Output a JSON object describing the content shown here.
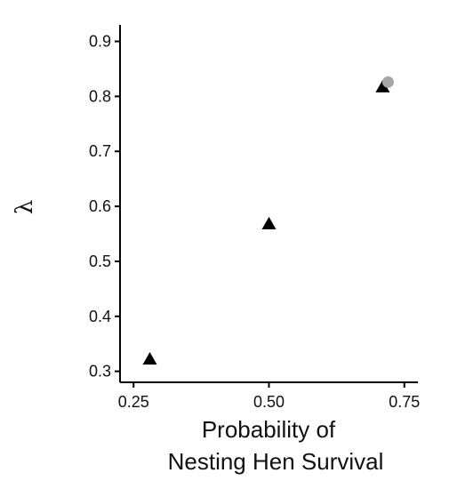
{
  "chart_data": {
    "type": "scatter",
    "xlabel_lines": [
      "Probability of",
      "Nesting Hen Survival"
    ],
    "ylabel": "λ",
    "xlim": [
      0.225,
      0.775
    ],
    "ylim": [
      0.28,
      0.93
    ],
    "x_ticks": [
      "0.25",
      "0.50",
      "0.75"
    ],
    "y_ticks": [
      "0.3",
      "0.4",
      "0.5",
      "0.6",
      "0.7",
      "0.8",
      "0.9"
    ],
    "grid": false,
    "legend": "none",
    "series": [
      {
        "marker": "triangle",
        "color": "#000000",
        "points": [
          {
            "x": 0.28,
            "y": 0.322
          },
          {
            "x": 0.5,
            "y": 0.568
          },
          {
            "x": 0.71,
            "y": 0.817
          }
        ]
      },
      {
        "marker": "circle",
        "color": "#a6a6a6",
        "points": [
          {
            "x": 0.72,
            "y": 0.826
          }
        ]
      }
    ]
  }
}
